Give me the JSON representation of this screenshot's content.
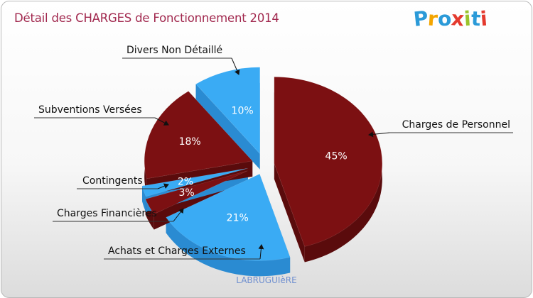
{
  "header": {
    "title": "Détail des CHARGES de Fonctionnement 2014",
    "logo": [
      "P",
      "r",
      "o",
      "x",
      "i",
      "t",
      "i"
    ],
    "logo_colors": [
      "#2b9ad8",
      "#f4a500",
      "#2b9ad8",
      "#e43a2e",
      "#9bc32b",
      "#2b9ad8",
      "#e43a2e"
    ]
  },
  "footer": {
    "commune": "LABRUGUIèRE"
  },
  "colors": {
    "dark_red": "#7c1012",
    "dark_red_side": "#5a0b0c",
    "light_blue": "#3aabf4",
    "light_blue_side": "#2a8bd2",
    "title": "#a1284e"
  },
  "chart_data": {
    "type": "pie",
    "title": "Détail des CHARGES de Fonctionnement 2014",
    "slices": [
      {
        "label": "Charges de Personnel",
        "value": 45,
        "pct_label": "45%",
        "color": "#7c1012"
      },
      {
        "label": "Achats et Charges Externes",
        "value": 21,
        "pct_label": "21%",
        "color": "#3aabf4"
      },
      {
        "label": "Charges Financières",
        "value": 3,
        "pct_label": "3%",
        "color": "#7c1012"
      },
      {
        "label": "Contingents",
        "value": 2,
        "pct_label": "2%",
        "color": "#3aabf4"
      },
      {
        "label": "Subventions Versées",
        "value": 18,
        "pct_label": "18%",
        "color": "#7c1012"
      },
      {
        "label": "Divers Non Détaillé",
        "value": 10,
        "pct_label": "10%",
        "color": "#3aabf4"
      }
    ]
  }
}
